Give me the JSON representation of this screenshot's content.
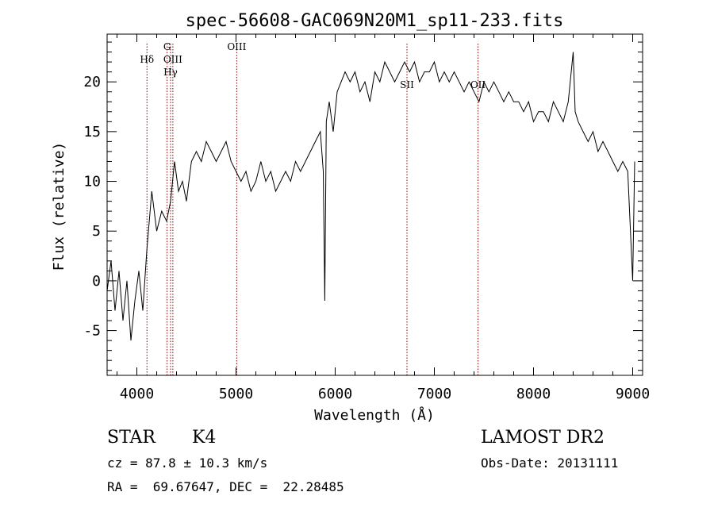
{
  "chart_data": {
    "type": "line",
    "title": "spec-56608-GAC069N20M1_sp11-233.fits",
    "xlabel": "Wavelength (Å)",
    "ylabel": "Flux (relative)",
    "xlim": [
      3700,
      9100
    ],
    "ylim": [
      -9.5,
      24.8
    ],
    "x_ticks": [
      4000,
      5000,
      6000,
      7000,
      8000,
      9000
    ],
    "y_ticks": [
      -5,
      0,
      5,
      10,
      15,
      20
    ],
    "grid": false,
    "line_color": "#000000",
    "marker_color": "#8b0000",
    "series": [
      {
        "x": [
          3700,
          3740,
          3780,
          3820,
          3860,
          3900,
          3940,
          3980,
          4020,
          4060,
          4100,
          4150,
          4200,
          4250,
          4300,
          4340,
          4380,
          4420,
          4460,
          4500,
          4550,
          4600,
          4650,
          4700,
          4750,
          4800,
          4850,
          4900,
          4950,
          5000,
          5050,
          5100,
          5150,
          5200,
          5250,
          5300,
          5350,
          5400,
          5450,
          5500,
          5550,
          5600,
          5650,
          5700,
          5750,
          5800,
          5850,
          5880,
          5895,
          5910,
          5940,
          5980,
          6020,
          6060,
          6100,
          6150,
          6200,
          6250,
          6300,
          6350,
          6400,
          6450,
          6500,
          6550,
          6600,
          6650,
          6700,
          6750,
          6800,
          6850,
          6900,
          6950,
          7000,
          7050,
          7100,
          7150,
          7200,
          7250,
          7300,
          7350,
          7400,
          7450,
          7500,
          7550,
          7600,
          7650,
          7700,
          7750,
          7800,
          7850,
          7900,
          7950,
          8000,
          8050,
          8100,
          8150,
          8200,
          8250,
          8300,
          8350,
          8400,
          8420,
          8450,
          8500,
          8550,
          8600,
          8650,
          8700,
          8750,
          8800,
          8850,
          8900,
          8950,
          9000,
          9020
        ],
        "y": [
          -1,
          2,
          -3,
          1,
          -4,
          0,
          -6,
          -2,
          1,
          -3,
          3,
          9,
          5,
          7,
          6,
          8,
          12,
          9,
          10,
          8,
          12,
          13,
          12,
          14,
          13,
          12,
          13,
          14,
          12,
          11,
          10,
          11,
          9,
          10,
          12,
          10,
          11,
          9,
          10,
          11,
          10,
          12,
          11,
          12,
          13,
          14,
          15,
          11,
          -2,
          16,
          18,
          15,
          19,
          20,
          21,
          20,
          21,
          19,
          20,
          18,
          21,
          20,
          22,
          21,
          20,
          21,
          22,
          21,
          22,
          20,
          21,
          21,
          22,
          20,
          21,
          20,
          21,
          20,
          19,
          20,
          19,
          18,
          20,
          19,
          20,
          19,
          18,
          19,
          18,
          18,
          17,
          18,
          16,
          17,
          17,
          16,
          18,
          17,
          16,
          18,
          23,
          17,
          16,
          15,
          14,
          15,
          13,
          14,
          13,
          12,
          11,
          12,
          11,
          0,
          12
        ]
      }
    ],
    "markers": [
      {
        "x": 4102,
        "label": "Hδ",
        "label_row": 1
      },
      {
        "x": 4305,
        "label": "G",
        "label_row": 0
      },
      {
        "x": 4340,
        "label": "Hγ",
        "label_row": 2
      },
      {
        "x": 4363,
        "label": "OIII",
        "label_row": 1
      },
      {
        "x": 5007,
        "label": "OIII",
        "label_row": 0
      },
      {
        "x": 6724,
        "label": "SII",
        "label_row": 3
      },
      {
        "x": 7440,
        "label": "OII",
        "label_row": 3
      }
    ]
  },
  "info": {
    "object_class": "STAR",
    "subclass": "K4",
    "survey": "LAMOST DR2",
    "redshift": "cz = 87.8 ± 10.3 km/s",
    "obs_date": "Obs-Date: 20131111",
    "coords": "RA =  69.67647, DEC =  22.28485"
  }
}
